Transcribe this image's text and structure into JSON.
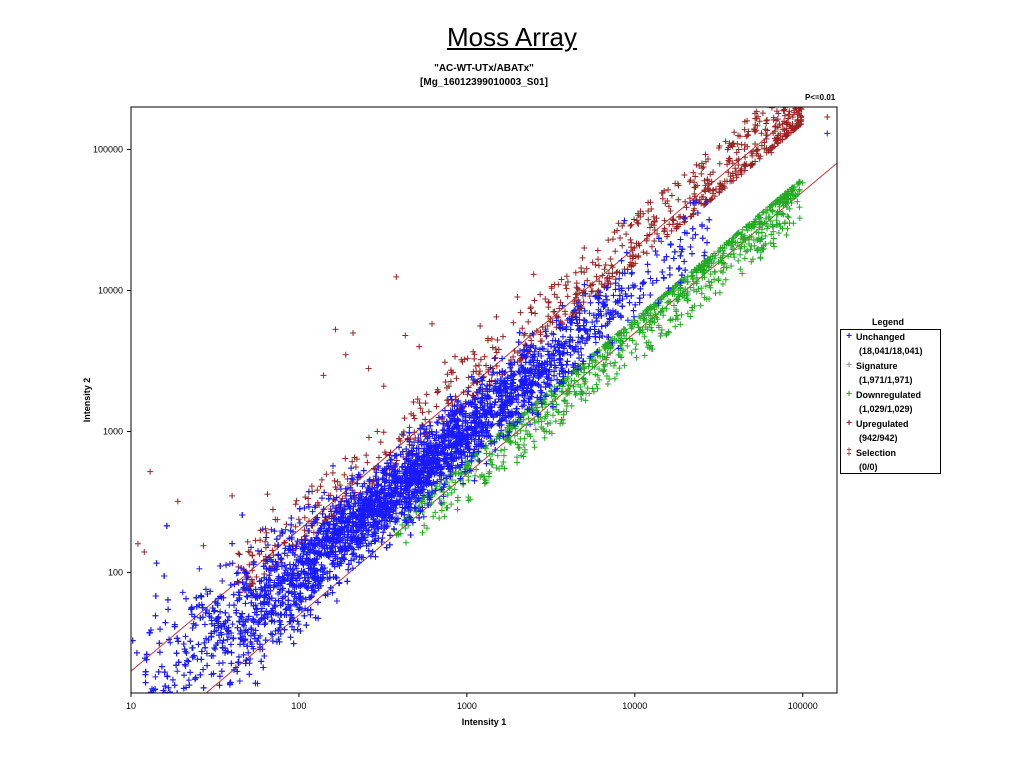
{
  "slide": {
    "title": "Moss Array"
  },
  "chart_data": {
    "type": "scatter",
    "title": "Moss Array",
    "subtitle_lines": [
      "\"AC-WT-UTx/ABATx\"",
      "[Mg_16012399010003_S01]"
    ],
    "threshold_label": "P<=0.01",
    "xlabel": "Intensity 1",
    "ylabel": "Intensity 2",
    "x_scale": "log",
    "y_scale": "log",
    "xlim": [
      10,
      160000
    ],
    "ylim": [
      14,
      200000
    ],
    "x_ticks": [
      10,
      100,
      1000,
      10000,
      100000
    ],
    "x_tick_labels": [
      "10",
      "100",
      "1000",
      "10000",
      "100000"
    ],
    "y_ticks": [
      100,
      1000,
      10000,
      100000
    ],
    "y_tick_labels": [
      "100",
      "1000",
      "10000",
      "100000"
    ],
    "grid": false,
    "legend_position": "right",
    "legend_title": "Legend",
    "reference_lines": [
      {
        "name": "upper threshold",
        "slope_log": 1,
        "intercept_factor": 2.0,
        "color": "#cc3333"
      },
      {
        "name": "lower threshold",
        "slope_log": 1,
        "intercept_factor": 0.5,
        "color": "#cc3333"
      }
    ],
    "series": [
      {
        "name": "Unchanged",
        "count_label": "(18,041/18,041)",
        "color": "#1a1aff",
        "marker": "+",
        "distribution": {
          "x_range": [
            10,
            30000
          ],
          "log_sd_factor": 0.13,
          "points_drawn": 6500
        }
      },
      {
        "name": "Signature",
        "count_label": "(1,971/1,971)",
        "color": "#999999",
        "marker": "+",
        "points": []
      },
      {
        "name": "Downregulated",
        "count_label": "(1,029/1,029)",
        "color": "#22aa22",
        "marker": "+",
        "distribution": {
          "x_range": [
            80,
            140000
          ],
          "y_over_x": [
            0.3,
            0.62
          ],
          "points_drawn": 1000
        }
      },
      {
        "name": "Upregulated",
        "count_label": "(942/942)",
        "color": "#992222",
        "marker": "+",
        "distribution": {
          "x_range": [
            10,
            160000
          ],
          "y_over_x": [
            1.55,
            3.5
          ],
          "points_drawn": 900
        }
      },
      {
        "name": "Selection",
        "count_label": "(0/0)",
        "color": "#cc2222",
        "marker": "selection",
        "points": []
      }
    ],
    "outliers": [
      {
        "series": "Upregulated",
        "points": [
          [
            11,
            160
          ],
          [
            12,
            140
          ],
          [
            13,
            520
          ],
          [
            19,
            320
          ],
          [
            27,
            155
          ],
          [
            40,
            350
          ],
          [
            65,
            360
          ],
          [
            70,
            280
          ],
          [
            108,
            200
          ],
          [
            140,
            2500
          ],
          [
            165,
            5300
          ],
          [
            190,
            3500
          ],
          [
            210,
            5000
          ],
          [
            260,
            2800
          ],
          [
            320,
            2100
          ],
          [
            380,
            12500
          ],
          [
            430,
            4800
          ],
          [
            520,
            4000
          ],
          [
            620,
            5800
          ],
          [
            740,
            3100
          ],
          [
            850,
            3400
          ],
          [
            1200,
            5600
          ],
          [
            1500,
            6500
          ],
          [
            2000,
            9000
          ],
          [
            2500,
            13000
          ],
          [
            5000,
            20000
          ],
          [
            8000,
            30000
          ],
          [
            12000,
            42000
          ],
          [
            26000,
            60000
          ],
          [
            50000,
            90000
          ],
          [
            65000,
            95000
          ],
          [
            140000,
            170000
          ]
        ]
      },
      {
        "series": "Unchanged",
        "points": [
          [
            140000,
            130000
          ]
        ]
      },
      {
        "series": "Downregulated",
        "points": [
          [
            4800,
            1700
          ],
          [
            100000,
            58000
          ]
        ]
      }
    ]
  },
  "legend": {
    "title": "Legend",
    "items": [
      {
        "label": "Unchanged",
        "count": "(18,041/18,041)",
        "symbol": "+",
        "color": "#1a1aff"
      },
      {
        "label": "Signature",
        "count": "(1,971/1,971)",
        "symbol": "+",
        "color": "#999999"
      },
      {
        "label": "Downregulated",
        "count": "(1,029/1,029)",
        "symbol": "+",
        "color": "#22aa22"
      },
      {
        "label": "Upregulated",
        "count": "(942/942)",
        "symbol": "+",
        "color": "#992222"
      },
      {
        "label": "Selection",
        "count": "(0/0)",
        "symbol": "‡",
        "color": "#cc2222"
      }
    ]
  }
}
